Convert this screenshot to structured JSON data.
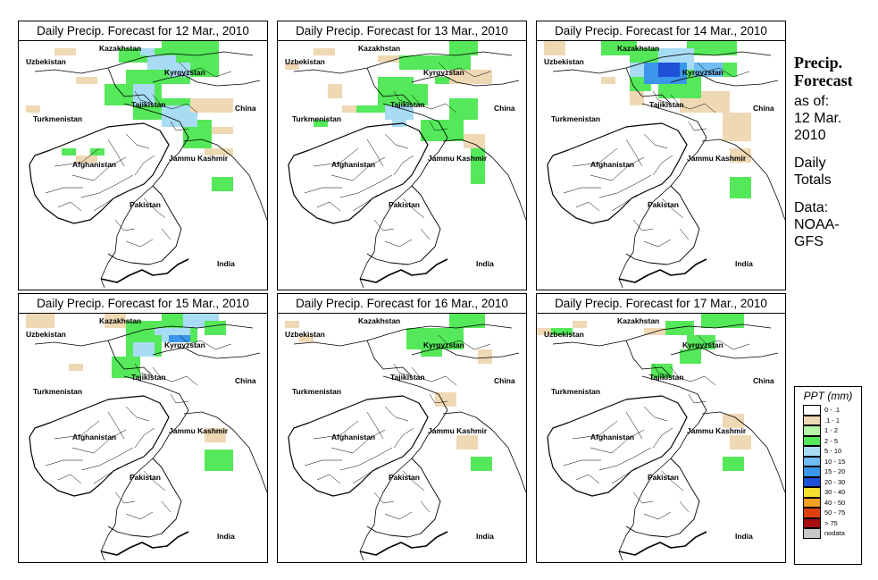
{
  "panels": [
    {
      "title": "Daily Precip. Forecast for  12 Mar., 2010"
    },
    {
      "title": "Daily Precip. Forecast for  13 Mar., 2010"
    },
    {
      "title": "Daily Precip. Forecast for  14 Mar., 2010"
    },
    {
      "title": "Daily Precip. Forecast for  15 Mar., 2010"
    },
    {
      "title": "Daily Precip. Forecast for  16 Mar., 2010"
    },
    {
      "title": "Daily Precip. Forecast for  17 Mar., 2010"
    }
  ],
  "map_labels": {
    "kazakhstan": "Kazakhstan",
    "uzbekistan": "Uzbekistan",
    "kyrgyzstan": "Kyrgyzstan",
    "turkmenistan": "Turkmenistan",
    "tajikistan": "Tajikistan",
    "china": "China",
    "afghanistan": "Afghanistan",
    "jammu_kashmir": "Jammu Kashmir",
    "pakistan": "Pakistan",
    "india": "India"
  },
  "side": {
    "title_line1": "Precip.",
    "title_line2": "Forecast",
    "asof_line1": "as of:",
    "asof_line2": "12 Mar.",
    "asof_line3": "2010",
    "totals_line1": "Daily",
    "totals_line2": "Totals",
    "data_line1": "Data:",
    "data_line2": "NOAA-",
    "data_line3": "GFS"
  },
  "legend": {
    "title": "PPT (mm)",
    "items": [
      {
        "label": "0 - .1",
        "color": "#ffffff"
      },
      {
        "label": ".1 - 1",
        "color": "#efd8b4"
      },
      {
        "label": "1 - 2",
        "color": "#b6f5a8"
      },
      {
        "label": "2 - 5",
        "color": "#55e85a"
      },
      {
        "label": "5 - 10",
        "color": "#a8dcf5"
      },
      {
        "label": "10 - 15",
        "color": "#6fbdf2"
      },
      {
        "label": "15 - 20",
        "color": "#3a96ea"
      },
      {
        "label": "20 - 30",
        "color": "#1f50d8"
      },
      {
        "label": "30 - 40",
        "color": "#f5e030"
      },
      {
        "label": "40 - 50",
        "color": "#f5a020"
      },
      {
        "label": "50 - 75",
        "color": "#e04010"
      },
      {
        "label": "> 75",
        "color": "#a81010"
      },
      {
        "label": "nodata",
        "color": "#c8c8c8"
      }
    ]
  }
}
